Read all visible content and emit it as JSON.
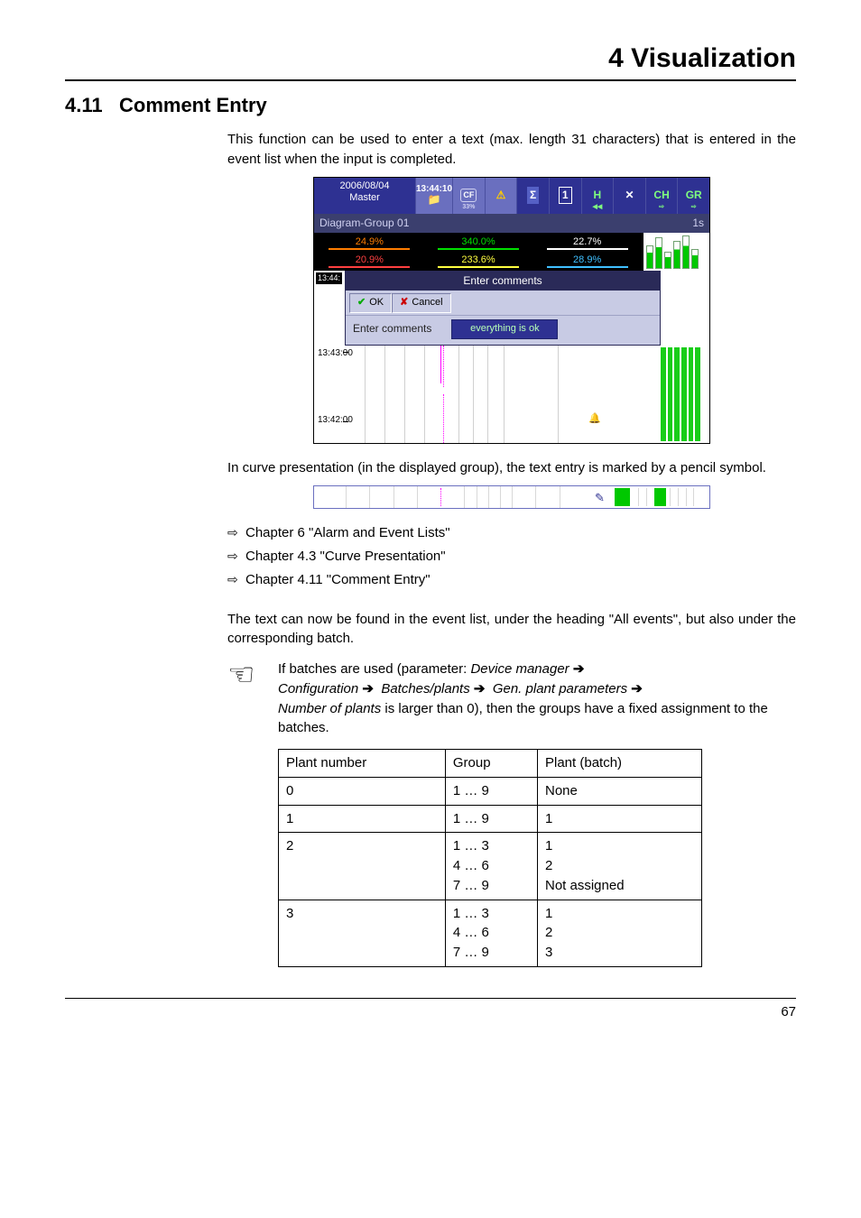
{
  "chapter_title": "4 Visualization",
  "section_number": "4.11",
  "section_title": "Comment Entry",
  "intro_p": "This function can be used to enter a text (max. length 31 characters) that is entered in the event list when the input is completed.",
  "screenshot": {
    "date": "2006/08/04",
    "master": "Master",
    "time": "13:44:10",
    "cf_pct": "33%",
    "group_bar_left": "Diagram-Group 01",
    "group_bar_right": "1s",
    "channels": [
      {
        "text": "24.9%",
        "color": "#ff7d00"
      },
      {
        "text": "340.0%",
        "color": "#00e000"
      },
      {
        "text": "22.7%",
        "color": "#ffffff"
      },
      {
        "text": "20.9%",
        "color": "#ff4040"
      },
      {
        "text": "233.6%",
        "color": "#ffff40"
      },
      {
        "text": "28.9%",
        "color": "#40c0ff"
      }
    ],
    "dlg_side_time": "13:44:",
    "dlg_title": "Enter comments",
    "dlg_ok": "OK",
    "dlg_cancel": "Cancel",
    "dlg_label": "Enter comments",
    "dlg_value": "everything is ok",
    "plot_ts1": "13:43:00",
    "plot_ts2": "13:42:00",
    "toolbar_icons": [
      "CF",
      "⚠",
      "Σ",
      "1",
      "H",
      "✖",
      "CH",
      "GR"
    ],
    "toolbar_sub": [
      "33%",
      "",
      "",
      "",
      "◀◀",
      "",
      "⇨",
      "⇨"
    ]
  },
  "mid_p": "In curve presentation (in the displayed group), the text entry is marked by a pencil symbol.",
  "links": [
    "Chapter 6 \"Alarm and Event Lists\"",
    "Chapter 4.3 \"Curve Presentation\"",
    "Chapter 4.11 \"Comment Entry\""
  ],
  "after_links_p": "The text can now be found in the event list, under the heading \"All events\", but also under the corresponding batch.",
  "note": {
    "line1_a": "If batches are used (parameter: ",
    "line1_b": "Device manager",
    "line2_a": "Configuration",
    "line2_b": "Batches/plants",
    "line2_c": "Gen. plant parameters",
    "line3_a": "Number of plants",
    "line3_b": " is larger than 0), then the groups have a fixed assignment to the batches."
  },
  "table": {
    "headers": [
      "Plant number",
      "Group",
      "Plant (batch)"
    ],
    "rows": [
      [
        "0",
        "1 … 9",
        "None"
      ],
      [
        "1",
        "1 … 9",
        "1"
      ],
      [
        "2",
        "1 … 3\n4 … 6\n7 … 9",
        "1\n2\nNot assigned"
      ],
      [
        "3",
        "1 … 3\n4 … 6\n7 … 9",
        "1\n2\n3"
      ]
    ]
  },
  "page_number": "67",
  "colors": {
    "navy": "#2e3192",
    "navy_light": "#6a6fbf",
    "green": "#00c800",
    "magenta": "#ff00ff"
  }
}
